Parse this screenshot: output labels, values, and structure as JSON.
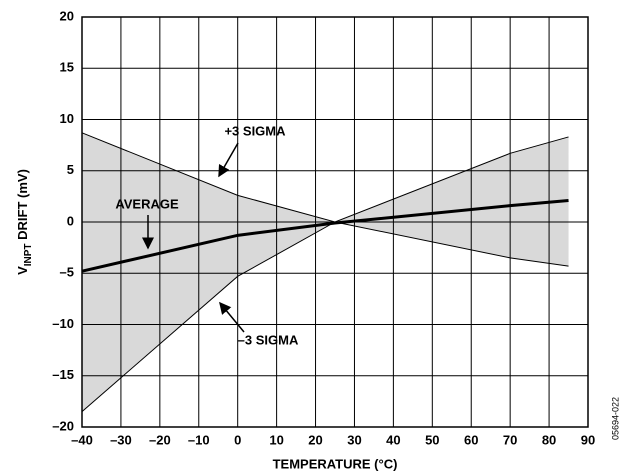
{
  "chart_data": {
    "type": "line",
    "xlabel": "TEMPERATURE (°C)",
    "ylabel": [
      "V",
      "INPT",
      " DRIFT (mV)"
    ],
    "figure_id": "05694-022",
    "x": [
      -40,
      0,
      25,
      70,
      85
    ],
    "series": [
      {
        "name": "+3 SIGMA",
        "color": "#000000",
        "values": [
          8.7,
          2.6,
          0,
          6.7,
          8.3
        ]
      },
      {
        "name": "–3 SIGMA",
        "color": "#000000",
        "values": [
          -18.5,
          -5.3,
          0,
          -3.5,
          -4.3
        ]
      },
      {
        "name": "AVERAGE",
        "color": "#000000",
        "values": [
          -4.8,
          -1.3,
          -0.1,
          1.6,
          2.1
        ]
      }
    ],
    "band_color": "#d9d9d9",
    "grid": true,
    "xlim": [
      -40,
      90
    ],
    "ylim": [
      -20,
      20
    ],
    "xticks": [
      {
        "value": -40,
        "label": "–40"
      },
      {
        "value": -30,
        "label": "–30"
      },
      {
        "value": -20,
        "label": "–20"
      },
      {
        "value": -10,
        "label": "–10"
      },
      0,
      10,
      20,
      30,
      40,
      50,
      60,
      70,
      80,
      90
    ],
    "yticks": [
      {
        "value": -20,
        "label": "–20"
      },
      {
        "value": -15,
        "label": "–15"
      },
      {
        "value": -10,
        "label": "–10"
      },
      {
        "value": -5,
        "label": "–5"
      },
      0,
      5,
      10,
      15,
      20
    ]
  }
}
